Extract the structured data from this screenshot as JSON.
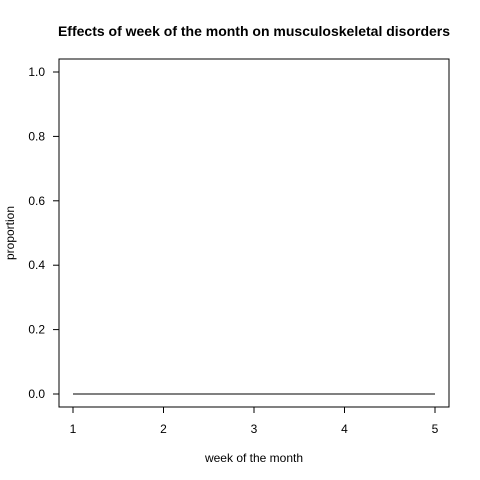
{
  "chart_data": {
    "type": "line",
    "title": "Effects of week of the month on musculoskeletal disorders",
    "xlabel": "week of the month",
    "ylabel": "proportion",
    "x_ticks": [
      "1",
      "2",
      "3",
      "4",
      "5"
    ],
    "y_ticks": [
      "0.0",
      "0.2",
      "0.4",
      "0.6",
      "0.8",
      "1.0"
    ],
    "xlim": [
      1,
      5
    ],
    "ylim": [
      0,
      1
    ],
    "grid": false,
    "series": [
      {
        "x": [
          1,
          2,
          3,
          4,
          5
        ],
        "y": [
          0,
          0,
          0,
          0,
          0
        ],
        "color": "#000000"
      }
    ]
  }
}
